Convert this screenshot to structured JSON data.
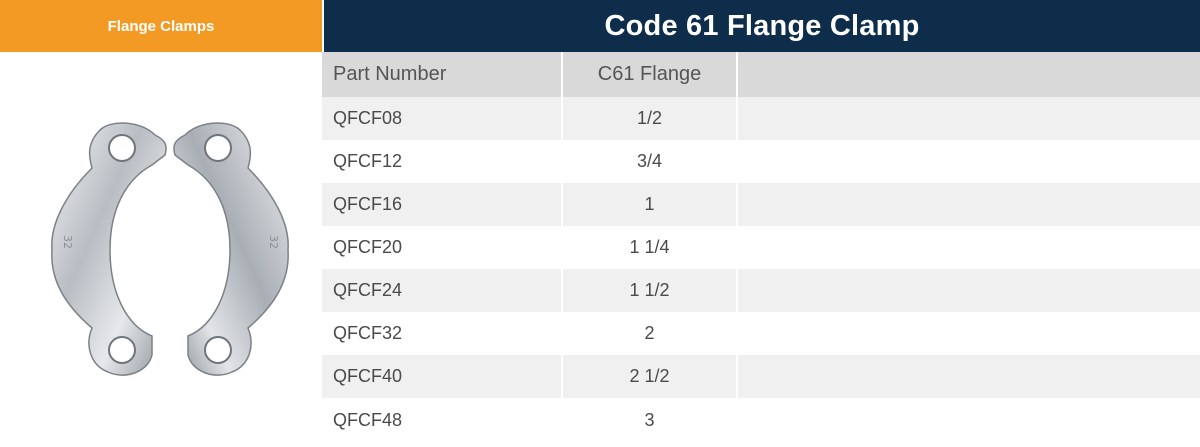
{
  "category_tab": {
    "label": "Flange Clamps"
  },
  "title": "Code 61 Flange Clamp",
  "table": {
    "headers": [
      "Part Number",
      "C61 Flange",
      ""
    ],
    "rows": [
      {
        "part_number": "QFCF08",
        "flange": "1/2"
      },
      {
        "part_number": "QFCF12",
        "flange": "3/4"
      },
      {
        "part_number": "QFCF16",
        "flange": "1"
      },
      {
        "part_number": "QFCF20",
        "flange": "1 1/4"
      },
      {
        "part_number": "QFCF24",
        "flange": "1 1/2"
      },
      {
        "part_number": "QFCF32",
        "flange": "2"
      },
      {
        "part_number": "QFCF40",
        "flange": "2 1/2"
      },
      {
        "part_number": "QFCF48",
        "flange": "3"
      }
    ]
  },
  "image": {
    "label": "flange-clamp-pair",
    "marking": "32"
  },
  "colors": {
    "tab": "#f39a25",
    "title_bar": "#0d2d4b",
    "header_row": "#d9d9d9",
    "stripe": "#f0f0f0"
  }
}
